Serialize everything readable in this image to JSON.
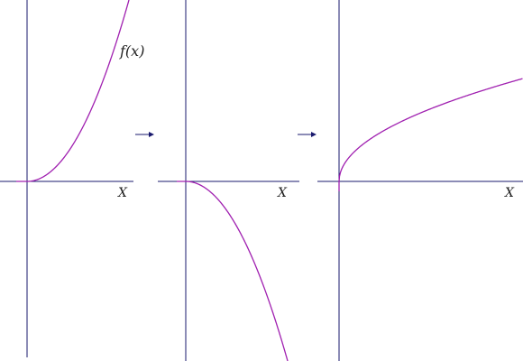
{
  "panels": [
    {
      "id": "panel-1",
      "function_label": "f(x)",
      "x_axis_label": "X"
    },
    {
      "id": "panel-2",
      "function_label": "",
      "x_axis_label": "X"
    },
    {
      "id": "panel-3",
      "function_label": "",
      "x_axis_label": "X"
    }
  ],
  "transitions": [
    {
      "symbol": "→"
    },
    {
      "symbol": "→"
    }
  ],
  "colors": {
    "axis": "#1a1a6e",
    "curve": "#a020b0",
    "background": "#ffffff"
  }
}
